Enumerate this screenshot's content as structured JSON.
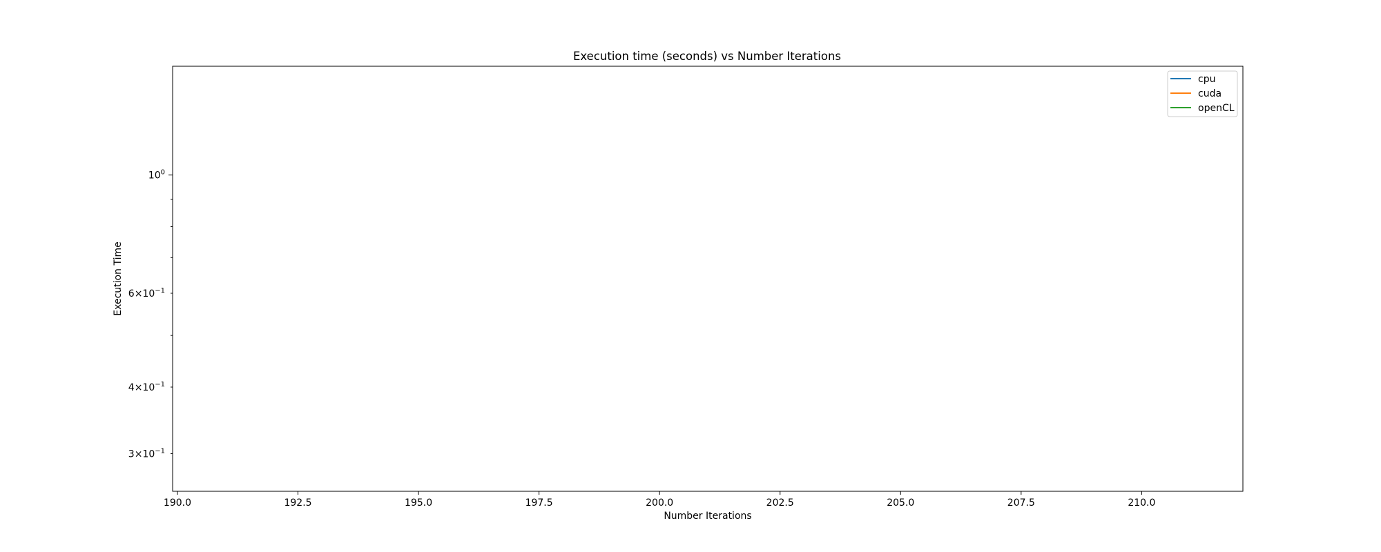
{
  "chart_data": {
    "type": "line",
    "title": "Execution time (seconds) vs Number Iterations",
    "xlabel": "Number Iterations",
    "ylabel": "Execution Time",
    "xlim": [
      189.9,
      212.1
    ],
    "ylim": [
      0.255,
      1.6
    ],
    "y_scale": "log",
    "grid": false,
    "legend_position": "top-right",
    "x_ticks": [
      {
        "value": 190.0,
        "label": "190.0"
      },
      {
        "value": 192.5,
        "label": "192.5"
      },
      {
        "value": 195.0,
        "label": "195.0"
      },
      {
        "value": 197.5,
        "label": "197.5"
      },
      {
        "value": 200.0,
        "label": "200.0"
      },
      {
        "value": 202.5,
        "label": "202.5"
      },
      {
        "value": 205.0,
        "label": "205.0"
      },
      {
        "value": 207.5,
        "label": "207.5"
      },
      {
        "value": 210.0,
        "label": "210.0"
      }
    ],
    "y_ticks_major": [
      {
        "value": 1.0,
        "base": "10",
        "exp": "0"
      }
    ],
    "y_ticks_minor": [
      {
        "value": 0.3,
        "coef": "3",
        "base": "10",
        "exp": "−1"
      },
      {
        "value": 0.4,
        "coef": "4",
        "base": "10",
        "exp": "−1"
      },
      {
        "value": 0.5
      },
      {
        "value": 0.6,
        "coef": "6",
        "base": "10",
        "exp": "−1"
      },
      {
        "value": 0.7
      },
      {
        "value": 0.8
      },
      {
        "value": 0.9
      }
    ],
    "series": [
      {
        "name": "cpu",
        "color": "#1f77b4",
        "x": [],
        "y": []
      },
      {
        "name": "cuda",
        "color": "#ff7f0e",
        "x": [],
        "y": []
      },
      {
        "name": "openCL",
        "color": "#2ca02c",
        "x": [],
        "y": []
      }
    ]
  }
}
